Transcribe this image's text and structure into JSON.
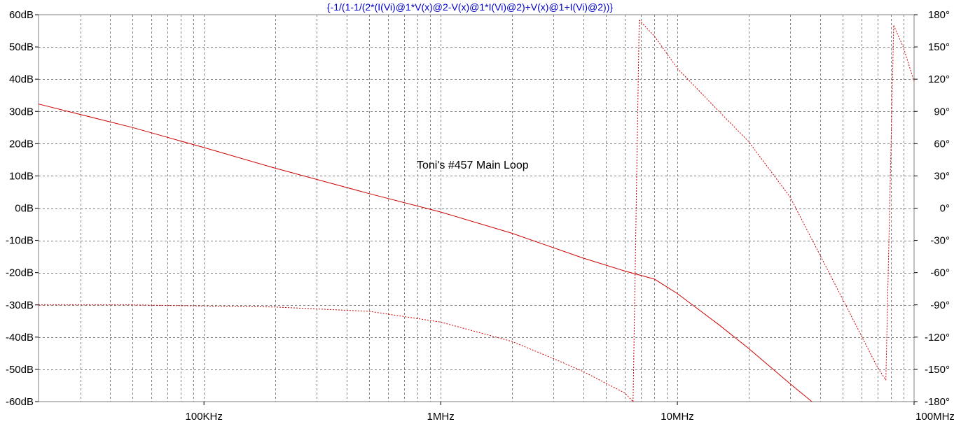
{
  "chart_data": {
    "type": "line",
    "title": "{-1/(1-1/(2*(I(Vi)@1*V(x)@2-V(x)@1*I(Vi)@2)+V(x)@1+I(Vi)@2))}",
    "annotation": "Toni's #457 Main Loop",
    "x_scale": "log",
    "xlim": [
      20000,
      100000000
    ],
    "x_ticks": [
      {
        "value": 100000,
        "label": "100KHz"
      },
      {
        "value": 1000000,
        "label": "1MHz"
      },
      {
        "value": 10000000,
        "label": "10MHz"
      },
      {
        "value": 100000000,
        "label": "100MHz"
      }
    ],
    "y_left": {
      "ylim": [
        -60,
        60
      ],
      "ticks": [
        60,
        50,
        40,
        30,
        20,
        10,
        0,
        -10,
        -20,
        -30,
        -40,
        -50,
        -60
      ],
      "labels": [
        "60dB",
        "50dB",
        "40dB",
        "30dB",
        "20dB",
        "10dB",
        "0dB",
        "-10dB",
        "-20dB",
        "-30dB",
        "-40dB",
        "-50dB",
        "-60dB"
      ]
    },
    "y_right": {
      "ylim": [
        -180,
        180
      ],
      "ticks": [
        180,
        150,
        120,
        90,
        60,
        30,
        0,
        -30,
        -60,
        -90,
        -120,
        -150,
        -180
      ],
      "labels": [
        "180°",
        "150°",
        "120°",
        "90°",
        "60°",
        "30°",
        "0°",
        "-30°",
        "-60°",
        "-90°",
        "-120°",
        "-150°",
        "-180°"
      ]
    },
    "grid": true,
    "colors": {
      "title": "#0000cc",
      "trace": "#cc0000",
      "grid": "#808080",
      "axis": "#808080"
    },
    "series": [
      {
        "axis": "left",
        "style": "solid",
        "x": [
          20000,
          50000,
          100000,
          200000,
          500000,
          1000000,
          2000000,
          4000000,
          6000000,
          8000000,
          10000000,
          15000000,
          20000000,
          30000000,
          37000000
        ],
        "y": [
          32.3,
          25.0,
          18.8,
          12.4,
          4.5,
          -1.2,
          -7.8,
          -15.5,
          -19.5,
          -22.0,
          -26.5,
          -36.2,
          -43.5,
          -54.5,
          -60.0
        ]
      },
      {
        "axis": "right",
        "style": "dashed",
        "segments": [
          {
            "x": [
              20000,
              50000,
              100000,
              200000,
              500000,
              1000000,
              2000000,
              3000000,
              4000000,
              5000000,
              6000000,
              6500000
            ],
            "y": [
              -90,
              -90,
              -91,
              -92,
              -96,
              -106,
              -124,
              -140,
              -152,
              -163,
              -172,
              -180
            ]
          },
          {
            "x": [
              6500000,
              6900000
            ],
            "y": [
              -180,
              175
            ]
          },
          {
            "x": [
              6900000,
              8000000,
              10000000,
              15000000,
              20000000,
              30000000,
              50000000,
              70000000,
              76000000
            ],
            "y": [
              175,
              160,
              130,
              90,
              62,
              10,
              -85,
              -148,
              -160
            ]
          },
          {
            "x": [
              76000000,
              82000000
            ],
            "y": [
              -160,
              170
            ]
          },
          {
            "x": [
              82000000,
              90000000,
              100000000
            ],
            "y": [
              170,
              150,
              118
            ]
          }
        ]
      }
    ]
  }
}
